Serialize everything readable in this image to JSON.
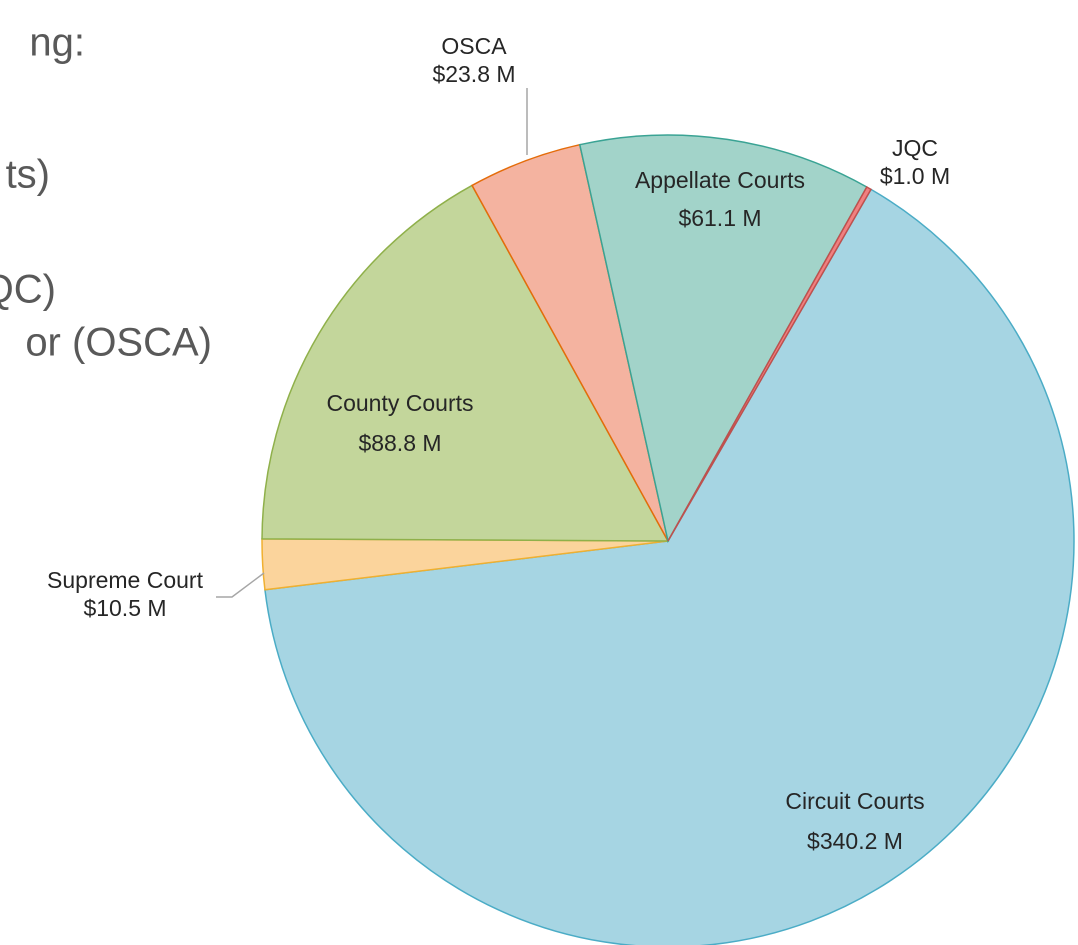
{
  "slide_text": [
    "ng:",
    "ts)",
    "QC)",
    "or (OSCA)"
  ],
  "chart_data": {
    "type": "pie",
    "categories": [
      "Circuit Courts",
      "Supreme Court",
      "County Courts",
      "OSCA",
      "Appellate Courts",
      "JQC"
    ],
    "values": [
      340.2,
      10.5,
      88.8,
      23.8,
      61.1,
      1.0
    ],
    "value_labels": [
      "$340.2 M",
      "$10.5 M",
      "$88.8 M",
      "$23.8 M",
      "$61.1 M",
      "$1.0 M"
    ],
    "colors": [
      "#a6d5e3",
      "#fbd49c",
      "#c3d69b",
      "#f4b3a0",
      "#a2d3c9",
      "#f08080"
    ],
    "edge_colors": [
      "#4bacc6",
      "#f0b030",
      "#8fb04a",
      "#e46c0a",
      "#3aa394",
      "#c0504d"
    ]
  }
}
